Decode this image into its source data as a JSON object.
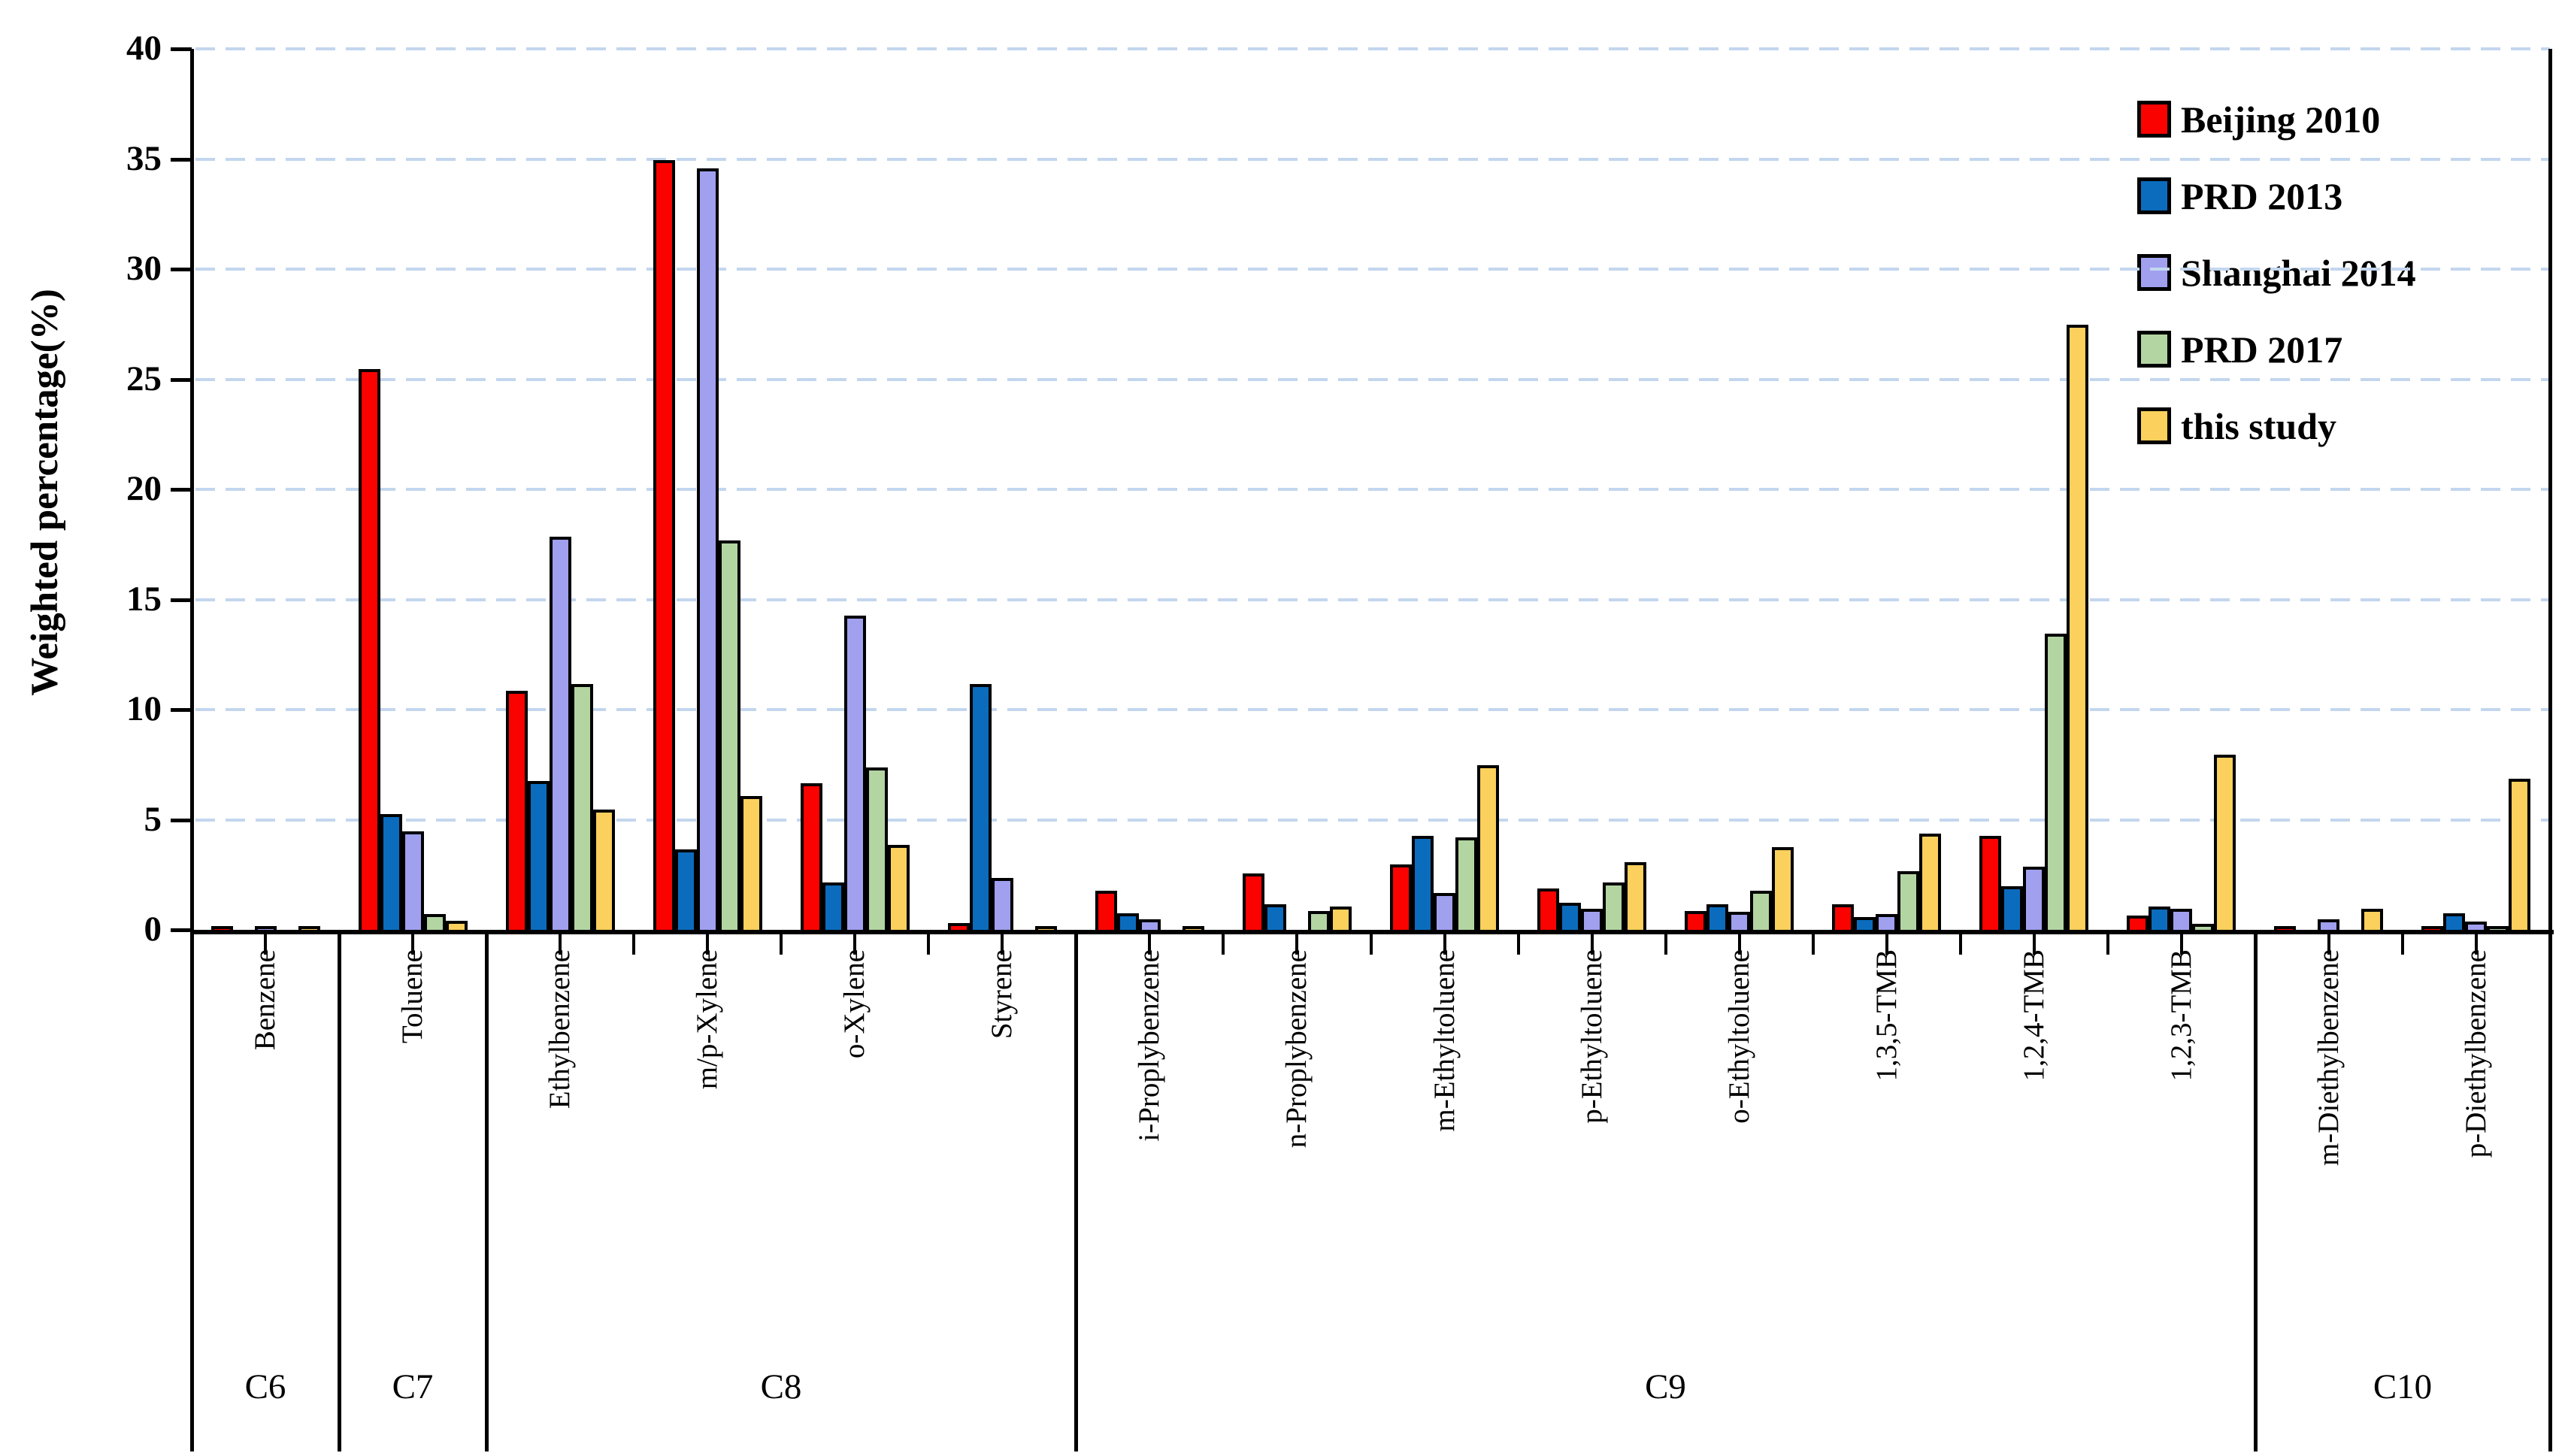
{
  "chart_data": {
    "type": "bar",
    "title": "",
    "xlabel": "",
    "ylabel": "Weighted percentage(%)",
    "ylim": [
      0,
      40
    ],
    "yticks": [
      0,
      5,
      10,
      15,
      20,
      25,
      30,
      35,
      40
    ],
    "grid": "horizontal dashed light-blue, on at every ytick",
    "legend_position": "top-right inside plot",
    "categories": [
      "Benzene",
      "Toluene",
      "Ethylbenzene",
      "m/p-Xylene",
      "o-Xylene",
      "Styrene",
      "i-Proplybenzene",
      "n-Proplybenzene",
      "m-Ethyltoluene",
      "p-Ethyltoluene",
      "o-Ethyltoluene",
      "1,3,5-TMB",
      "1,2,4-TMB",
      "1,2,3-TMB",
      "m-Diethylbenzene",
      "p-Diethylbenzene"
    ],
    "category_groups": [
      {
        "label": "C6",
        "count": 1
      },
      {
        "label": "C7",
        "count": 1
      },
      {
        "label": "C8",
        "count": 4
      },
      {
        "label": "C9",
        "count": 8
      },
      {
        "label": "C10",
        "count": 2
      }
    ],
    "series": [
      {
        "name": "Beijing 2010",
        "color": "#FA0200",
        "values": [
          0.3,
          25.6,
          11.0,
          35.1,
          6.8,
          0.45,
          1.9,
          2.7,
          3.1,
          2.0,
          1.0,
          1.3,
          4.4,
          0.8,
          0.15,
          0.2
        ]
      },
      {
        "name": "PRD 2013",
        "color": "#0B6CBE",
        "values": [
          0,
          5.4,
          6.9,
          3.8,
          2.3,
          11.3,
          0.9,
          1.3,
          4.4,
          1.35,
          1.3,
          0.7,
          2.1,
          1.2,
          0,
          0.9
        ]
      },
      {
        "name": "Shanghai 2014",
        "color": "#A0A0EF",
        "values": [
          0.3,
          4.6,
          18.0,
          34.7,
          14.4,
          2.5,
          0.6,
          0,
          1.8,
          1.1,
          0.95,
          0.85,
          3.0,
          1.1,
          0.6,
          0.5
        ]
      },
      {
        "name": "PRD 2017",
        "color": "#B3D5A2",
        "values": [
          0,
          0.85,
          11.3,
          17.8,
          7.5,
          0,
          0,
          1.0,
          4.35,
          2.3,
          1.9,
          2.8,
          13.6,
          0.4,
          0,
          0.15
        ]
      },
      {
        "name": "this study",
        "color": "#FBD05C",
        "values": [
          0.15,
          0.55,
          5.6,
          6.2,
          4.0,
          0.3,
          0.3,
          1.2,
          7.6,
          3.2,
          3.9,
          4.5,
          27.6,
          8.1,
          1.1,
          7.0
        ]
      }
    ]
  },
  "colors": {
    "background": "#ffffff",
    "axis": "#000000",
    "gridline": "#c3d6ee",
    "text": "#000000"
  }
}
